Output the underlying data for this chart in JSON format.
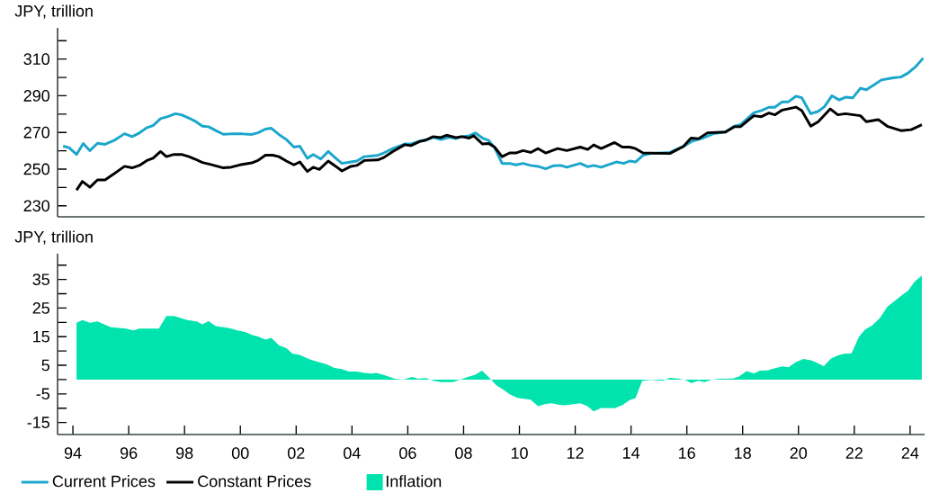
{
  "chart_data": [
    {
      "type": "line",
      "ylabel": "JPY, trillion",
      "xlim": [
        1993.45,
        2024.52
      ],
      "ylim": [
        224,
        327
      ],
      "yticks": [
        230,
        {
          "value": 240,
          "label": null
        },
        250,
        {
          "value": 260,
          "label": null
        },
        270,
        {
          "value": 280,
          "label": null
        },
        290,
        {
          "value": 300,
          "label": null
        },
        310,
        {
          "value": 320,
          "label": null
        }
      ],
      "tick_labels": "y",
      "legend": "bottom",
      "series": [
        {
          "name": "Current Prices",
          "color": "#1ba6cc",
          "x": [
            1993.65,
            1993.86,
            1994.13,
            1994.37,
            1994.61,
            1994.88,
            1995.15,
            1995.47,
            1995.85,
            1996.12,
            1996.38,
            1996.65,
            1996.87,
            1997.14,
            1997.4,
            1997.67,
            1997.89,
            1998.16,
            1998.37,
            1998.64,
            1998.86,
            1999.12,
            1999.39,
            1999.66,
            2000.09,
            2000.41,
            2000.63,
            2000.9,
            2001.11,
            2001.38,
            2001.65,
            2001.92,
            2002.13,
            2002.4,
            2002.61,
            2002.88,
            2003.15,
            2003.42,
            2003.64,
            2003.96,
            2004.17,
            2004.44,
            2004.92,
            2005.14,
            2005.46,
            2005.89,
            2006.11,
            2006.42,
            2006.64,
            2006.91,
            2007.18,
            2007.5,
            2007.72,
            2007.93,
            2008.2,
            2008.42,
            2008.68,
            2008.9,
            2009.11,
            2009.38,
            2009.65,
            2009.87,
            2010.13,
            2010.4,
            2010.67,
            2010.94,
            2011.21,
            2011.48,
            2011.7,
            2012.18,
            2012.45,
            2012.66,
            2012.93,
            2013.47,
            2013.74,
            2013.95,
            2014.16,
            2014.43,
            2014.7,
            2015.39,
            2015.88,
            2016.2,
            2016.52,
            2016.95,
            2017.38,
            2017.7,
            2017.92,
            2018.4,
            2018.67,
            2018.94,
            2019.15,
            2019.42,
            2019.64,
            2019.91,
            2020.12,
            2020.44,
            2020.71,
            2020.93,
            2021.2,
            2021.46,
            2021.68,
            2021.95,
            2022.22,
            2022.43,
            2022.7,
            2022.97,
            2023.4,
            2023.67,
            2023.93,
            2024.2,
            2024.47
          ],
          "values": [
            262.5,
            261.7,
            258.0,
            264.0,
            260.1,
            264.1,
            263.5,
            265.6,
            269.3,
            267.7,
            269.7,
            272.6,
            273.7,
            277.5,
            278.6,
            280.2,
            279.6,
            277.8,
            276.2,
            273.4,
            273.1,
            271.0,
            269.0,
            269.2,
            269.2,
            268.9,
            269.8,
            271.8,
            272.3,
            268.9,
            266.1,
            262.0,
            262.5,
            255.9,
            258.0,
            255.5,
            259.6,
            255.9,
            253.1,
            253.9,
            254.4,
            256.8,
            257.5,
            258.8,
            261.2,
            263.7,
            263.7,
            265.3,
            265.8,
            267.4,
            266.1,
            267.4,
            266.6,
            267.7,
            268.2,
            269.7,
            266.9,
            265.6,
            261.7,
            253.1,
            253.1,
            252.3,
            253.1,
            252.0,
            251.5,
            250.2,
            251.8,
            252.0,
            251.0,
            253.1,
            251.3,
            252.0,
            251.0,
            253.9,
            253.1,
            254.4,
            253.9,
            257.5,
            258.5,
            259.1,
            262.4,
            265.3,
            266.6,
            269.3,
            270.2,
            273.4,
            274.2,
            280.7,
            281.9,
            283.7,
            283.7,
            286.7,
            286.7,
            289.7,
            288.9,
            280.2,
            281.5,
            284.0,
            290.0,
            287.7,
            289.2,
            288.9,
            294.1,
            293.3,
            295.9,
            298.6,
            299.8,
            300.2,
            302.4,
            305.9,
            310.5
          ]
        },
        {
          "name": "Constant Prices",
          "color": "#000000",
          "x": [
            1994.13,
            1994.34,
            1994.61,
            1994.88,
            1995.15,
            1995.47,
            1995.85,
            1996.12,
            1996.38,
            1996.65,
            1996.87,
            1997.14,
            1997.35,
            1997.62,
            1997.89,
            1998.16,
            1998.37,
            1998.64,
            1998.91,
            1999.39,
            1999.66,
            1999.98,
            2000.41,
            2000.63,
            2000.9,
            2001.16,
            2001.38,
            2001.65,
            2001.92,
            2002.13,
            2002.4,
            2002.61,
            2002.83,
            2003.15,
            2003.42,
            2003.64,
            2003.96,
            2004.17,
            2004.44,
            2004.92,
            2005.14,
            2005.46,
            2005.89,
            2006.11,
            2006.42,
            2006.64,
            2006.91,
            2007.18,
            2007.39,
            2007.72,
            2007.93,
            2008.2,
            2008.36,
            2008.68,
            2008.9,
            2009.11,
            2009.38,
            2009.65,
            2009.87,
            2010.13,
            2010.4,
            2010.67,
            2010.94,
            2011.37,
            2011.7,
            2012.18,
            2012.45,
            2012.66,
            2012.93,
            2013.41,
            2013.69,
            2013.95,
            2014.16,
            2014.43,
            2015.39,
            2015.88,
            2016.15,
            2016.42,
            2016.74,
            2017.38,
            2017.7,
            2017.92,
            2018.4,
            2018.67,
            2018.94,
            2019.15,
            2019.42,
            2019.91,
            2020.12,
            2020.44,
            2020.71,
            2021.14,
            2021.41,
            2021.68,
            2022.22,
            2022.43,
            2022.86,
            2023.18,
            2023.67,
            2024.04,
            2024.42
          ],
          "values": [
            238.5,
            243.3,
            240.1,
            244.1,
            244.1,
            247.4,
            251.5,
            250.7,
            252.0,
            254.7,
            255.9,
            259.6,
            256.8,
            258.0,
            258.0,
            256.8,
            255.5,
            253.6,
            252.6,
            250.7,
            251.0,
            252.3,
            253.4,
            254.7,
            257.6,
            257.6,
            256.8,
            254.4,
            252.3,
            253.9,
            248.7,
            251.0,
            249.8,
            254.4,
            251.5,
            249.0,
            251.5,
            252.0,
            254.7,
            255.0,
            256.3,
            259.6,
            263.3,
            262.8,
            265.0,
            265.8,
            267.7,
            267.2,
            268.5,
            267.2,
            267.7,
            266.9,
            268.2,
            263.7,
            264.0,
            262.0,
            256.8,
            258.8,
            258.8,
            260.1,
            259.1,
            261.2,
            258.8,
            261.2,
            260.1,
            262.0,
            260.7,
            263.2,
            261.2,
            264.5,
            262.0,
            262.0,
            261.2,
            258.8,
            258.5,
            262.4,
            266.9,
            266.6,
            269.8,
            270.2,
            273.1,
            273.1,
            279.1,
            278.6,
            280.6,
            279.6,
            282.2,
            283.8,
            281.9,
            273.4,
            275.9,
            282.8,
            279.6,
            280.2,
            279.1,
            275.9,
            277.0,
            273.4,
            271.0,
            271.5,
            274.2
          ]
        }
      ]
    },
    {
      "type": "area",
      "ylabel": "JPY, trillion",
      "xlim": [
        1993.45,
        2024.52
      ],
      "ylim": [
        -19.2,
        44
      ],
      "yticks": [
        -15,
        {
          "value": -10,
          "label": null
        },
        -5,
        {
          "value": 0,
          "label": null
        },
        5,
        {
          "value": 10,
          "label": null
        },
        15,
        {
          "value": 20,
          "label": null
        },
        25,
        {
          "value": 30,
          "label": null
        },
        35,
        {
          "value": 40,
          "label": null
        }
      ],
      "xticks": [
        {
          "value": 1994,
          "label": "94"
        },
        {
          "value": 1996,
          "label": "96"
        },
        {
          "value": 1998,
          "label": "98"
        },
        {
          "value": 2000,
          "label": "00"
        },
        {
          "value": 2002,
          "label": "02"
        },
        {
          "value": 2004,
          "label": "04"
        },
        {
          "value": 2006,
          "label": "06"
        },
        {
          "value": 2008,
          "label": "08"
        },
        {
          "value": 2010,
          "label": "10"
        },
        {
          "value": 2012,
          "label": "12"
        },
        {
          "value": 2014,
          "label": "14"
        },
        {
          "value": 2016,
          "label": "16"
        },
        {
          "value": 2018,
          "label": "18"
        },
        {
          "value": 2020,
          "label": "20"
        },
        {
          "value": 2022,
          "label": "22"
        },
        {
          "value": 2024,
          "label": "24"
        }
      ],
      "legend": "bottom",
      "series": [
        {
          "name": "Inflation",
          "color": "#00e3ae",
          "x": [
            1994.13,
            1994.34,
            1994.61,
            1994.88,
            1995.36,
            1995.9,
            1996.17,
            1996.38,
            1997.08,
            1997.35,
            1997.62,
            1998.1,
            1998.43,
            1998.64,
            1998.86,
            1999.12,
            1999.61,
            1999.93,
            2000.2,
            2000.41,
            2000.63,
            2000.9,
            2001.11,
            2001.38,
            2001.65,
            2001.86,
            2002.13,
            2002.45,
            2002.67,
            2003.1,
            2003.37,
            2003.63,
            2003.9,
            2004.17,
            2004.44,
            2004.71,
            2004.87,
            2005.14,
            2005.51,
            2005.83,
            2006.16,
            2006.37,
            2006.64,
            2006.96,
            2007.18,
            2007.61,
            2007.88,
            2008.15,
            2008.42,
            2008.66,
            2008.95,
            2009.17,
            2009.44,
            2009.65,
            2009.92,
            2010.4,
            2010.67,
            2010.94,
            2011.16,
            2011.42,
            2011.64,
            2012.18,
            2012.44,
            2012.66,
            2012.93,
            2013.41,
            2013.68,
            2013.95,
            2014.16,
            2014.4,
            2014.7,
            2015.13,
            2015.4,
            2015.67,
            2015.94,
            2016.15,
            2016.42,
            2016.63,
            2016.9,
            2017.17,
            2017.65,
            2017.87,
            2018.14,
            2018.41,
            2018.62,
            2018.89,
            2019.16,
            2019.43,
            2019.64,
            2019.91,
            2020.18,
            2020.45,
            2020.66,
            2020.91,
            2021.15,
            2021.41,
            2021.63,
            2021.9,
            2022.17,
            2022.38,
            2022.65,
            2022.92,
            2023.19,
            2023.46,
            2023.67,
            2023.94,
            2024.15,
            2024.42
          ],
          "values": [
            19.9,
            20.8,
            19.9,
            20.3,
            18.3,
            17.8,
            17.2,
            17.8,
            17.8,
            22.2,
            22.2,
            20.8,
            20.3,
            19.3,
            20.4,
            18.7,
            18.0,
            17.1,
            16.6,
            15.6,
            15.1,
            14.0,
            14.6,
            12.0,
            11.0,
            9.1,
            8.6,
            7.2,
            6.5,
            5.3,
            4.1,
            3.7,
            2.8,
            2.8,
            2.3,
            2.1,
            2.3,
            1.6,
            0.4,
            0.0,
            0.9,
            0.3,
            0.5,
            -0.5,
            -0.9,
            -0.9,
            0.0,
            0.9,
            1.7,
            3.1,
            0.4,
            -2.0,
            -3.6,
            -5.1,
            -6.4,
            -7.0,
            -9.3,
            -8.5,
            -8.3,
            -8.8,
            -9.0,
            -8.3,
            -9.3,
            -11.1,
            -9.9,
            -10.0,
            -9.0,
            -7.2,
            -6.5,
            -0.4,
            -0.1,
            -0.4,
            0.6,
            0.4,
            -0.1,
            -1.2,
            -0.4,
            -0.9,
            0.0,
            0.3,
            0.4,
            1.1,
            3.0,
            2.2,
            3.1,
            3.2,
            4.0,
            4.6,
            4.3,
            6.1,
            7.2,
            6.7,
            5.9,
            4.7,
            7.2,
            8.5,
            9.0,
            9.2,
            15.0,
            17.4,
            19.0,
            21.5,
            25.5,
            27.6,
            29.2,
            31.2,
            34.1,
            36.4
          ]
        }
      ]
    }
  ]
}
